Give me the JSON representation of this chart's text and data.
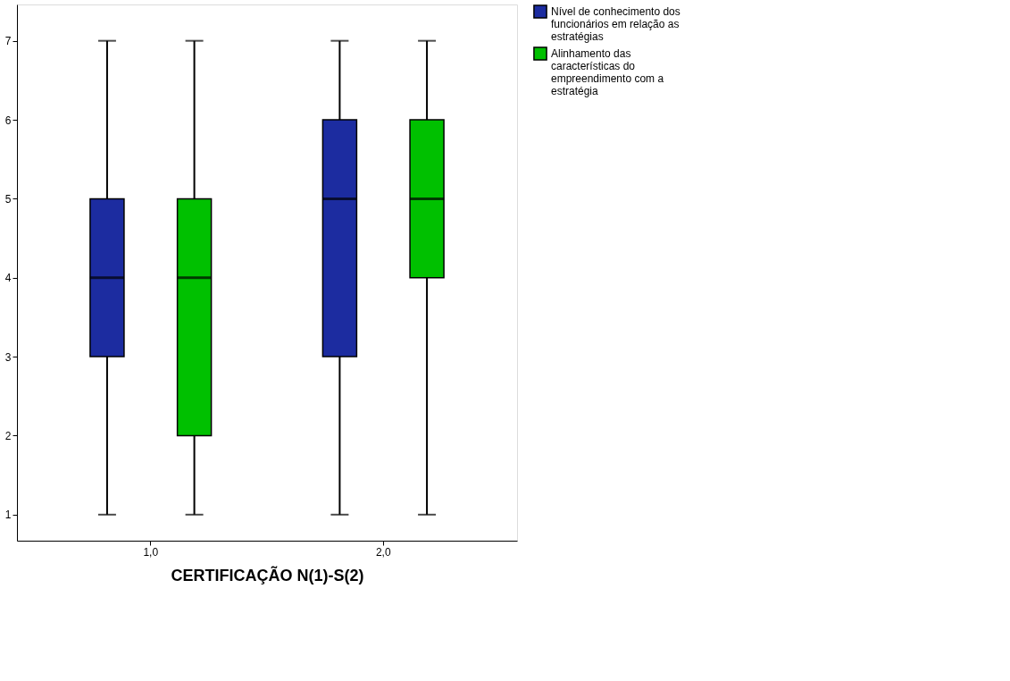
{
  "chart_data": {
    "type": "box",
    "xlabel": "CERTIFICAÇÃO N(1)-S(2)",
    "categories": [
      "1,0",
      "2,0"
    ],
    "ylim": [
      0.67,
      7.46
    ],
    "yticks": [
      {
        "value": 1,
        "label": "1"
      },
      {
        "value": 2,
        "label": "2"
      },
      {
        "value": 3,
        "label": "3"
      },
      {
        "value": 4,
        "label": "4"
      },
      {
        "value": 5,
        "label": "5"
      },
      {
        "value": 6,
        "label": "6"
      },
      {
        "value": 7,
        "label": "7"
      }
    ],
    "grid": false,
    "legend": "top right",
    "series": [
      {
        "name": "Nível de conhecimento dos funcionários em relação as estratégias",
        "color": "#1c2ca0",
        "boxes": [
          {
            "low": 1,
            "q1": 3,
            "median": 4,
            "q3": 5,
            "high": 7
          },
          {
            "low": 1,
            "q1": 3,
            "median": 5,
            "q3": 6,
            "high": 7
          }
        ]
      },
      {
        "name": "Alinhamento das características do empreendimento com a estratégia",
        "color": "#00c000",
        "boxes": [
          {
            "low": 1,
            "q1": 2,
            "median": 4,
            "q3": 5,
            "high": 7
          },
          {
            "low": 1,
            "q1": 4,
            "median": 5,
            "q3": 6,
            "high": 7
          }
        ]
      }
    ]
  }
}
